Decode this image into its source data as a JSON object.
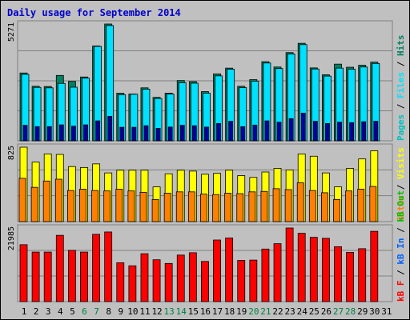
{
  "title": "Daily usage for September 2014",
  "colors": {
    "pages": "#00c0c0",
    "files": "#00e0ff",
    "hits": "#008060",
    "visits": "#ffff00",
    "sites": "#ff8000",
    "kbin": "#0060ff",
    "kbout": "#00c000",
    "kbf": "#ff0000",
    "weekend_day": "#008040",
    "weekday_day": "#000000"
  },
  "panels": {
    "top": {
      "max_label": "5271",
      "legend": [
        {
          "text": "Pages",
          "color_key": "pages"
        },
        {
          "text": "Files",
          "color_key": "files"
        },
        {
          "text": "Hits",
          "color_key": "hits"
        }
      ]
    },
    "mid": {
      "max_label": "825",
      "legend": [
        {
          "text": "Sites",
          "color_key": "sites"
        },
        {
          "text": "Visits",
          "color_key": "visits"
        }
      ]
    },
    "bot": {
      "max_label": "21985",
      "legend": [
        {
          "text": "kB F",
          "color_key": "kbf"
        },
        {
          "text": "kB In",
          "color_key": "kbin"
        },
        {
          "text": "kB Out",
          "color_key": "kbout"
        }
      ]
    }
  },
  "chart_data": {
    "type": "bar",
    "title": "Daily usage for September 2014",
    "categories": [
      "1",
      "2",
      "3",
      "4",
      "5",
      "6",
      "7",
      "8",
      "9",
      "10",
      "11",
      "12",
      "13",
      "14",
      "15",
      "16",
      "17",
      "18",
      "19",
      "20",
      "21",
      "22",
      "23",
      "24",
      "25",
      "26",
      "27",
      "28",
      "29",
      "30",
      "31"
    ],
    "weekend_days": [
      "6",
      "7",
      "13",
      "14",
      "20",
      "21",
      "27",
      "28"
    ],
    "ylim_top": [
      0,
      5271
    ],
    "ylim_mid": [
      0,
      825
    ],
    "ylim_bot": [
      0,
      21985
    ],
    "series": [
      {
        "name": "Hits",
        "panel": "top",
        "values": [
          3060,
          2460,
          2450,
          2950,
          2680,
          2880,
          4280,
          5271,
          2150,
          2110,
          2390,
          1960,
          2150,
          2720,
          2670,
          2220,
          3020,
          3280,
          2460,
          2760,
          3570,
          3330,
          3980,
          4400,
          3290,
          2980,
          3460,
          3320,
          3410,
          3550,
          0
        ]
      },
      {
        "name": "Files",
        "panel": "top",
        "values": [
          3000,
          2410,
          2390,
          2590,
          2420,
          2830,
          4260,
          5200,
          2080,
          2100,
          2330,
          1910,
          2110,
          2620,
          2600,
          2150,
          2930,
          3230,
          2400,
          2690,
          3510,
          3260,
          3920,
          4340,
          3240,
          2920,
          3280,
          3230,
          3330,
          3490,
          0
        ]
      },
      {
        "name": "Pages",
        "panel": "top",
        "values": [
          700,
          640,
          640,
          720,
          660,
          720,
          900,
          1100,
          610,
          610,
          680,
          560,
          620,
          700,
          680,
          620,
          780,
          880,
          640,
          710,
          900,
          840,
          1000,
          1250,
          880,
          780,
          840,
          820,
          860,
          880,
          0
        ]
      },
      {
        "name": "Visits",
        "panel": "mid",
        "values": [
          825,
          660,
          750,
          745,
          610,
          600,
          640,
          540,
          570,
          570,
          570,
          385,
          530,
          570,
          560,
          525,
          535,
          570,
          510,
          490,
          550,
          590,
          573,
          750,
          725,
          540,
          385,
          590,
          695,
          785,
          0
        ]
      },
      {
        "name": "Sites",
        "panel": "mid",
        "values": [
          480,
          380,
          450,
          470,
          345,
          360,
          345,
          340,
          360,
          340,
          325,
          245,
          315,
          330,
          330,
          305,
          300,
          315,
          310,
          330,
          335,
          365,
          355,
          430,
          345,
          320,
          245,
          340,
          360,
          390,
          0
        ]
      },
      {
        "name": "kB F",
        "panel": "bot",
        "values": [
          17000,
          14800,
          14800,
          19800,
          15300,
          14800,
          20100,
          20800,
          11600,
          10700,
          14300,
          12500,
          11400,
          13900,
          14600,
          12000,
          18400,
          19000,
          12300,
          12400,
          15700,
          17300,
          21985,
          20400,
          19200,
          18900,
          16400,
          14700,
          15800,
          21000,
          0
        ]
      }
    ]
  }
}
